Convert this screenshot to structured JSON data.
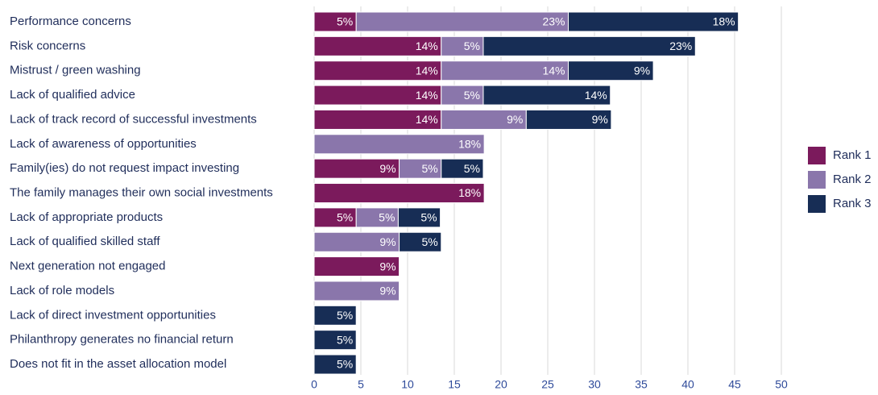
{
  "chart_data": {
    "type": "stacked_bar_horizontal",
    "categories": [
      "Performance concerns",
      "Risk concerns",
      "Mistrust / green washing",
      "Lack of qualified advice",
      "Lack of track record of successful investments",
      "Lack of awareness of opportunities",
      "Family(ies) do not request impact investing",
      "The family manages their own social investments",
      "Lack of appropriate products",
      "Lack of qualified skilled staff",
      "Next generation not engaged",
      "Lack of role models",
      "Lack of direct investment opportunities",
      "Philanthropy generates no financial return",
      "Does not fit in the asset allocation model"
    ],
    "series": [
      {
        "name": "Rank 1",
        "color": "#7b1a5c",
        "values": [
          4.5,
          13.6,
          13.6,
          13.6,
          13.6,
          null,
          9.1,
          18.2,
          4.5,
          null,
          9.1,
          null,
          null,
          null,
          null
        ],
        "value_labels": [
          "5%",
          "14%",
          "14%",
          "14%",
          "14%",
          null,
          "9%",
          "18%",
          "5%",
          null,
          "9%",
          null,
          null,
          null,
          null
        ]
      },
      {
        "name": "Rank 2",
        "color": "#8a76ab",
        "values": [
          22.7,
          4.5,
          13.6,
          4.5,
          9.1,
          18.2,
          4.5,
          null,
          4.5,
          9.1,
          null,
          9.1,
          null,
          null,
          null
        ],
        "value_labels": [
          "23%",
          "5%",
          "14%",
          "5%",
          "9%",
          "18%",
          "5%",
          null,
          "5%",
          "9%",
          null,
          "9%",
          null,
          null,
          null
        ]
      },
      {
        "name": "Rank 3",
        "color": "#172d55",
        "values": [
          18.2,
          22.7,
          9.1,
          13.6,
          9.1,
          null,
          4.5,
          null,
          4.5,
          4.5,
          null,
          null,
          4.5,
          4.5,
          4.5
        ],
        "value_labels": [
          "18%",
          "23%",
          "9%",
          "14%",
          "9%",
          null,
          "5%",
          null,
          "5%",
          "5%",
          null,
          null,
          "5%",
          "5%",
          "5%"
        ]
      }
    ],
    "xlim": [
      0,
      50
    ],
    "xticks": [
      0,
      5,
      10,
      15,
      20,
      25,
      30,
      35,
      40,
      45,
      50
    ],
    "grid": true,
    "legend": "right"
  }
}
